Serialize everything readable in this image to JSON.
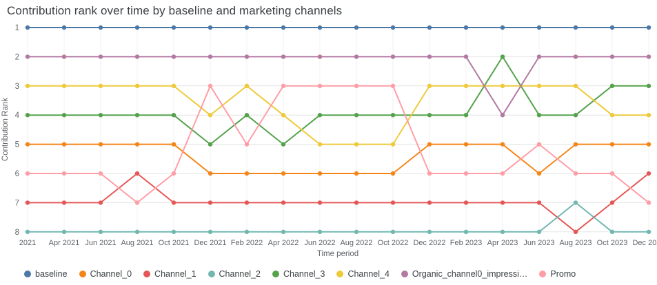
{
  "chart_data": {
    "type": "line",
    "subtype": "bump-rank-chart",
    "title": "Contribution rank over time by baseline and marketing channels",
    "xlabel": "Time period",
    "ylabel": "Contribution Rank",
    "grid": true,
    "legend_position": "bottom",
    "y_inverted": true,
    "ylim": [
      1,
      8
    ],
    "y_tick_labels": [
      "1",
      "2",
      "3",
      "4",
      "5",
      "6",
      "7",
      "8"
    ],
    "x_tick_labels": [
      "2021",
      "Apr 2021",
      "Jun 2021",
      "Aug 2021",
      "Oct 2021",
      "Dec 2021",
      "Feb 2022",
      "Apr 2022",
      "Jun 2022",
      "Aug 2022",
      "Oct 2022",
      "Dec 2022",
      "Feb 2023",
      "Apr 2023",
      "Jun 2023",
      "Aug 2023",
      "Oct 2023",
      "Dec 2023"
    ],
    "series": [
      {
        "name": "baseline",
        "color": "#4c78a8",
        "values": [
          1,
          1,
          1,
          1,
          1,
          1,
          1,
          1,
          1,
          1,
          1,
          1,
          1,
          1,
          1,
          1,
          1,
          1
        ]
      },
      {
        "name": "Channel_0",
        "color": "#f58518",
        "values": [
          5,
          5,
          5,
          5,
          5,
          6,
          6,
          6,
          6,
          6,
          6,
          5,
          5,
          5,
          6,
          5,
          5,
          5
        ]
      },
      {
        "name": "Channel_1",
        "color": "#e45756",
        "values": [
          7,
          7,
          7,
          6,
          7,
          7,
          7,
          7,
          7,
          7,
          7,
          7,
          7,
          7,
          7,
          8,
          7,
          6
        ]
      },
      {
        "name": "Channel_2",
        "color": "#72b7b2",
        "values": [
          8,
          8,
          8,
          8,
          8,
          8,
          8,
          8,
          8,
          8,
          8,
          8,
          8,
          8,
          8,
          7,
          8,
          8
        ]
      },
      {
        "name": "Channel_3",
        "color": "#54a24b",
        "values": [
          4,
          4,
          4,
          4,
          4,
          5,
          4,
          5,
          4,
          4,
          4,
          4,
          4,
          2,
          4,
          4,
          3,
          3
        ]
      },
      {
        "name": "Channel_4",
        "color": "#eeca3b",
        "values": [
          3,
          3,
          3,
          3,
          3,
          4,
          3,
          4,
          5,
          5,
          5,
          3,
          3,
          3,
          3,
          3,
          4,
          4
        ]
      },
      {
        "name": "Organic_channel0_impressi…",
        "color": "#b279a2",
        "values": [
          2,
          2,
          2,
          2,
          2,
          2,
          2,
          2,
          2,
          2,
          2,
          2,
          2,
          4,
          2,
          2,
          2,
          2
        ]
      },
      {
        "name": "Promo",
        "color": "#ff9da6",
        "values": [
          6,
          6,
          6,
          7,
          6,
          3,
          5,
          3,
          3,
          3,
          3,
          6,
          6,
          6,
          5,
          6,
          6,
          7
        ]
      }
    ]
  }
}
